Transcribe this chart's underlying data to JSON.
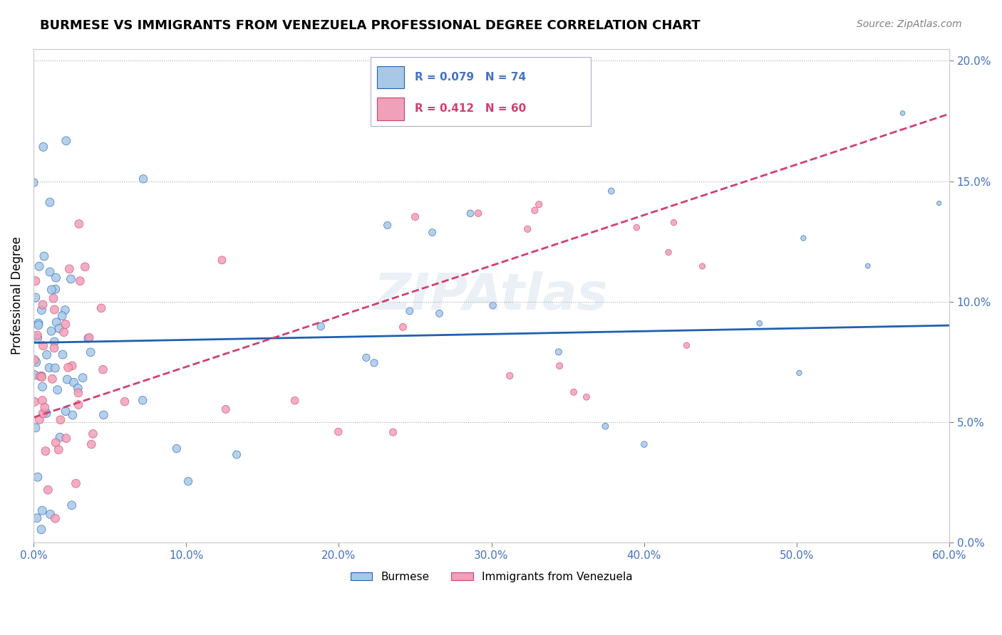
{
  "title": "BURMESE VS IMMIGRANTS FROM VENEZUELA PROFESSIONAL DEGREE CORRELATION CHART",
  "source": "Source: ZipAtlas.com",
  "ylabel": "Professional Degree",
  "burmese_R": 0.079,
  "burmese_N": 74,
  "venezuela_R": 0.412,
  "venezuela_N": 60,
  "burmese_color": "#a8c8e8",
  "burmese_line_color": "#2060b0",
  "venezuela_color": "#f0a0b8",
  "venezuela_line_color": "#d04070",
  "xlim": [
    0.0,
    0.6
  ],
  "ylim": [
    0.0,
    0.205
  ]
}
